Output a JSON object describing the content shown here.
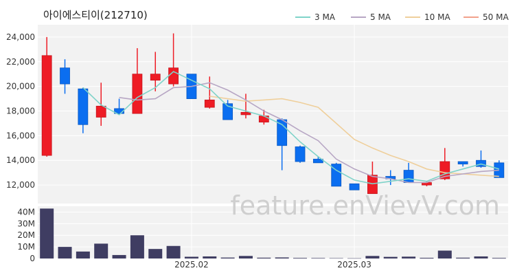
{
  "chart_data": {
    "type": "candlestick",
    "title": "아이에스티이(212710)",
    "watermark": "feature.enVievV.com",
    "colors": {
      "up": "#ee1c25",
      "down": "#0b6ef0",
      "volume": "#3f3d62",
      "ma3": "#7fd3c9",
      "ma5": "#b7a6c4",
      "ma10": "#efcf9b",
      "ma50": "#f2a08a",
      "grid": "#e6e6e6",
      "panel_bg": "#f2f2f2"
    },
    "legend": [
      {
        "key": "ma3",
        "label": "3 MA"
      },
      {
        "key": "ma5",
        "label": "5 MA"
      },
      {
        "key": "ma10",
        "label": "10 MA"
      },
      {
        "key": "ma50",
        "label": "50 MA"
      }
    ],
    "price_axis": {
      "min": 10500,
      "max": 25000,
      "ticks": [
        12000,
        14000,
        16000,
        18000,
        20000,
        22000,
        24000
      ],
      "tick_labels": [
        "12,000",
        "14,000",
        "16,000",
        "18,000",
        "20,000",
        "22,000",
        "24,000"
      ]
    },
    "volume_axis": {
      "min": 0,
      "max": 45000000,
      "ticks": [
        0,
        10000000,
        20000000,
        30000000,
        40000000
      ],
      "tick_labels": [
        "0",
        "10M",
        "20M",
        "30M",
        "40M"
      ]
    },
    "x_labels": [
      {
        "index": 8,
        "label": "2025.02"
      },
      {
        "index": 17,
        "label": "2025.03"
      }
    ],
    "candles": [
      {
        "open": 14400,
        "high": 24000,
        "low": 14300,
        "close": 22500,
        "volume": 43000000
      },
      {
        "open": 21500,
        "high": 22200,
        "low": 19400,
        "close": 20200,
        "volume": 10000000
      },
      {
        "open": 19800,
        "high": 19900,
        "low": 16200,
        "close": 16900,
        "volume": 6000000
      },
      {
        "open": 17500,
        "high": 20300,
        "low": 16800,
        "close": 18400,
        "volume": 12800000
      },
      {
        "open": 18200,
        "high": 19000,
        "low": 17700,
        "close": 17800,
        "volume": 3000000
      },
      {
        "open": 17800,
        "high": 23100,
        "low": 17800,
        "close": 21000,
        "volume": 20000000
      },
      {
        "open": 20500,
        "high": 22800,
        "low": 19600,
        "close": 21000,
        "volume": 8200000
      },
      {
        "open": 20200,
        "high": 24300,
        "low": 20000,
        "close": 21500,
        "volume": 10800000
      },
      {
        "open": 21000,
        "high": 21000,
        "low": 19000,
        "close": 19000,
        "volume": 1500000
      },
      {
        "open": 18300,
        "high": 20800,
        "low": 18200,
        "close": 18900,
        "volume": 1800000
      },
      {
        "open": 18600,
        "high": 18900,
        "low": 17300,
        "close": 17300,
        "volume": 800000
      },
      {
        "open": 17700,
        "high": 19400,
        "low": 17400,
        "close": 17900,
        "volume": 2200000
      },
      {
        "open": 17100,
        "high": 18100,
        "low": 16900,
        "close": 17600,
        "volume": 700000
      },
      {
        "open": 17300,
        "high": 17400,
        "low": 13200,
        "close": 15200,
        "volume": 900000
      },
      {
        "open": 15100,
        "high": 15200,
        "low": 13800,
        "close": 13900,
        "volume": 500000
      },
      {
        "open": 14100,
        "high": 14300,
        "low": 13800,
        "close": 13800,
        "volume": 400000
      },
      {
        "open": 13700,
        "high": 13800,
        "low": 11900,
        "close": 11900,
        "volume": 300000
      },
      {
        "open": 12100,
        "high": 12100,
        "low": 11600,
        "close": 11600,
        "volume": 200000
      },
      {
        "open": 11300,
        "high": 13900,
        "low": 11300,
        "close": 12800,
        "volume": 2200000
      },
      {
        "open": 12700,
        "high": 13200,
        "low": 12000,
        "close": 12500,
        "volume": 1400000
      },
      {
        "open": 13200,
        "high": 13800,
        "low": 12200,
        "close": 12200,
        "volume": 1600000
      },
      {
        "open": 12000,
        "high": 12300,
        "low": 11900,
        "close": 12200,
        "volume": 600000
      },
      {
        "open": 12500,
        "high": 15000,
        "low": 12400,
        "close": 13900,
        "volume": 6800000
      },
      {
        "open": 13900,
        "high": 13900,
        "low": 13500,
        "close": 13700,
        "volume": 700000
      },
      {
        "open": 14000,
        "high": 14800,
        "low": 13400,
        "close": 13500,
        "volume": 1800000
      },
      {
        "open": 13800,
        "high": 14000,
        "low": 12600,
        "close": 12600,
        "volume": 500000
      }
    ],
    "ma3": [
      null,
      null,
      19900,
      18500,
      17700,
      19100,
      19900,
      21200,
      20500,
      19800,
      18400,
      18000,
      17600,
      16900,
      15500,
      14300,
      13200,
      12400,
      12100,
      12300,
      12500,
      12300,
      12900,
      13300,
      13700,
      13300
    ],
    "ma5": [
      null,
      null,
      null,
      null,
      19100,
      18900,
      19000,
      19900,
      20000,
      20300,
      19700,
      18900,
      18000,
      17300,
      16400,
      15600,
      14100,
      13300,
      12700,
      12500,
      12200,
      12200,
      12700,
      12900,
      13100,
      13200
    ],
    "ma10": [
      null,
      null,
      null,
      null,
      null,
      null,
      null,
      null,
      null,
      19200,
      19000,
      18800,
      18900,
      19000,
      18700,
      18300,
      17000,
      15700,
      15000,
      14400,
      13900,
      13300,
      13000,
      12900,
      12800,
      12700
    ],
    "ma50": [
      null,
      null,
      null,
      null,
      null,
      null,
      null,
      null,
      null,
      null,
      null,
      null,
      null,
      null,
      null,
      null,
      null,
      null,
      null,
      null,
      null,
      null,
      null,
      null,
      null,
      null
    ]
  }
}
